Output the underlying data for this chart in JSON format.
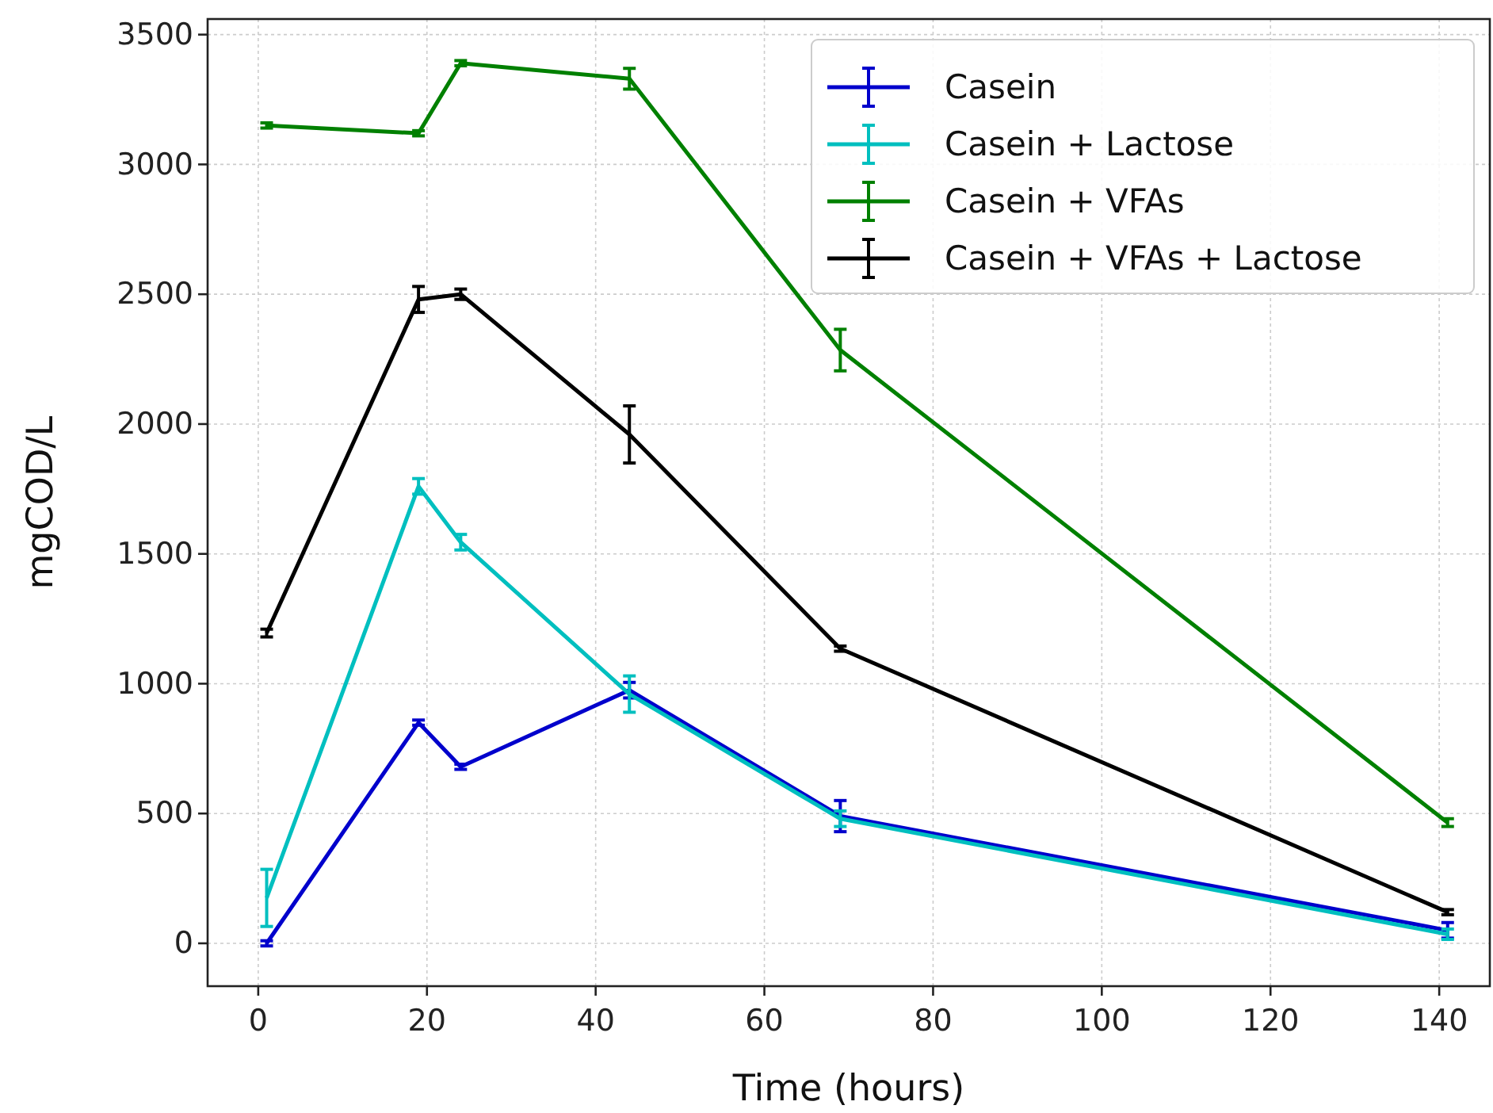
{
  "chart_data": {
    "type": "line",
    "xlabel": "Time (hours)",
    "ylabel": "mgCOD/L",
    "x": [
      1,
      19,
      24,
      44,
      69,
      141
    ],
    "xlim": [
      -6,
      146
    ],
    "xticks": [
      0,
      20,
      40,
      60,
      80,
      100,
      120,
      140
    ],
    "ylim": [
      -165,
      3560
    ],
    "yticks": [
      0,
      500,
      1000,
      1500,
      2000,
      2500,
      3000,
      3500
    ],
    "grid": true,
    "legend": "top right",
    "marker": "none",
    "line_style": "solid",
    "series": [
      {
        "name": "Casein",
        "color": "#0000cc",
        "values": [
          0,
          850,
          680,
          975,
          490,
          50
        ],
        "errors": [
          10,
          10,
          10,
          30,
          60,
          30
        ]
      },
      {
        "name": "Casein + Lactose",
        "color": "#00bfbf",
        "values": [
          175,
          1760,
          1545,
          960,
          480,
          35
        ],
        "errors": [
          110,
          30,
          30,
          70,
          30,
          20
        ]
      },
      {
        "name": "Casein + VFAs",
        "color": "#008000",
        "values": [
          3150,
          3120,
          3390,
          3330,
          2285,
          465
        ],
        "errors": [
          10,
          10,
          10,
          40,
          80,
          15
        ]
      },
      {
        "name": "Casein + VFAs + Lactose",
        "color": "#000000",
        "values": [
          1195,
          2480,
          2500,
          1960,
          1135,
          120
        ],
        "errors": [
          15,
          50,
          20,
          110,
          10,
          10
        ]
      }
    ]
  }
}
